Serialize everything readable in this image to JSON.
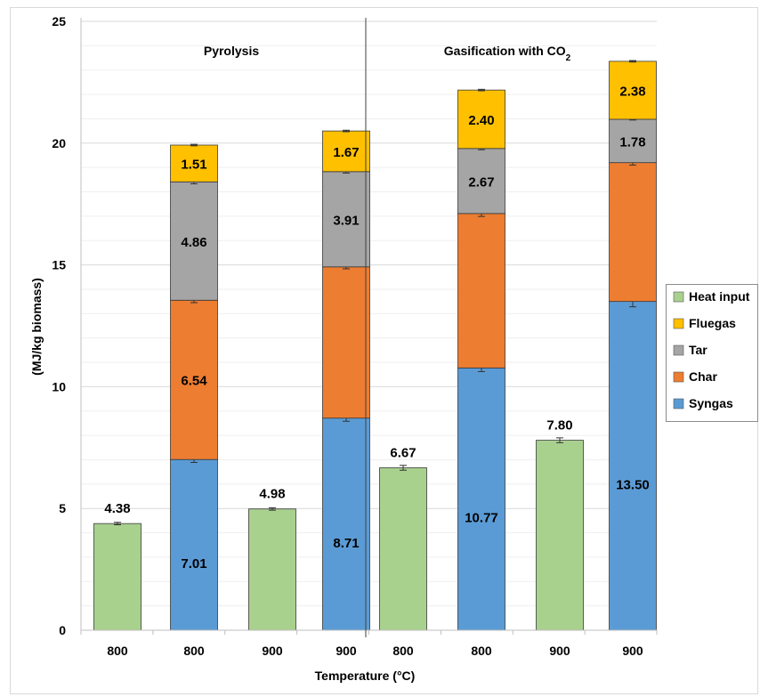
{
  "chart_data": {
    "type": "bar",
    "ylabel": "(MJ/kg biomass)",
    "xlabel": "Temperature (°C)",
    "ylim": [
      0,
      25
    ],
    "yticks": [
      "0",
      "5",
      "10",
      "15",
      "20",
      "25"
    ],
    "grid": true,
    "legend_position": "right",
    "panels": [
      {
        "title": "Pyrolysis",
        "title_sub": ""
      },
      {
        "title": "Gasification with CO",
        "title_sub": "2"
      }
    ],
    "categories": [
      "800",
      "800",
      "900",
      "900",
      "800",
      "800",
      "900",
      "900"
    ],
    "bars": [
      {
        "panel": 0,
        "category": "800",
        "kind": "heat",
        "segments": [
          {
            "series": "Heat input",
            "value": 4.38,
            "label": "4.38"
          }
        ],
        "error": 0.05
      },
      {
        "panel": 0,
        "category": "800",
        "kind": "stack",
        "segments": [
          {
            "series": "Syngas",
            "value": 7.01,
            "label": "7.01"
          },
          {
            "series": "Char",
            "value": 6.54,
            "label": "6.54"
          },
          {
            "series": "Tar",
            "value": 4.86,
            "label": "4.86"
          },
          {
            "series": "Fluegas",
            "value": 1.51,
            "label": "1.51"
          }
        ],
        "errors": [
          0.12,
          0.1,
          0.08,
          0.03
        ]
      },
      {
        "panel": 0,
        "category": "900",
        "kind": "heat",
        "segments": [
          {
            "series": "Heat input",
            "value": 4.98,
            "label": "4.98"
          }
        ],
        "error": 0.05
      },
      {
        "panel": 0,
        "category": "900",
        "kind": "stack",
        "segments": [
          {
            "series": "Syngas",
            "value": 8.71,
            "label": "8.71"
          },
          {
            "series": "Char",
            "value": 6.21,
            "label": ""
          },
          {
            "series": "Tar",
            "value": 3.91,
            "label": "3.91"
          },
          {
            "series": "Fluegas",
            "value": 1.67,
            "label": "1.67"
          }
        ],
        "errors": [
          0.13,
          0.08,
          0.06,
          0.03
        ]
      },
      {
        "panel": 1,
        "category": "800",
        "kind": "heat",
        "segments": [
          {
            "series": "Heat input",
            "value": 6.67,
            "label": "6.67"
          }
        ],
        "error": 0.1
      },
      {
        "panel": 1,
        "category": "800",
        "kind": "stack",
        "segments": [
          {
            "series": "Syngas",
            "value": 10.77,
            "label": "10.77"
          },
          {
            "series": "Char",
            "value": 6.34,
            "label": ""
          },
          {
            "series": "Tar",
            "value": 2.67,
            "label": "2.67"
          },
          {
            "series": "Fluegas",
            "value": 2.4,
            "label": "2.40"
          }
        ],
        "errors": [
          0.15,
          0.12,
          0.05,
          0.03
        ]
      },
      {
        "panel": 1,
        "category": "900",
        "kind": "heat",
        "segments": [
          {
            "series": "Heat input",
            "value": 7.8,
            "label": "7.80"
          }
        ],
        "error": 0.1
      },
      {
        "panel": 1,
        "category": "900",
        "kind": "stack",
        "segments": [
          {
            "series": "Syngas",
            "value": 13.5,
            "label": "13.50"
          },
          {
            "series": "Char",
            "value": 5.7,
            "label": ""
          },
          {
            "series": "Tar",
            "value": 1.78,
            "label": "1.78"
          },
          {
            "series": "Fluegas",
            "value": 2.38,
            "label": "2.38"
          }
        ],
        "errors": [
          0.22,
          0.1,
          0.03,
          0.03
        ]
      }
    ],
    "series": [
      {
        "name": "Heat input",
        "color": "#a9d18e"
      },
      {
        "name": "Fluegas",
        "color": "#ffc000"
      },
      {
        "name": "Tar",
        "color": "#a5a5a5"
      },
      {
        "name": "Char",
        "color": "#ed7d31"
      },
      {
        "name": "Syngas",
        "color": "#5b9bd5"
      }
    ]
  }
}
